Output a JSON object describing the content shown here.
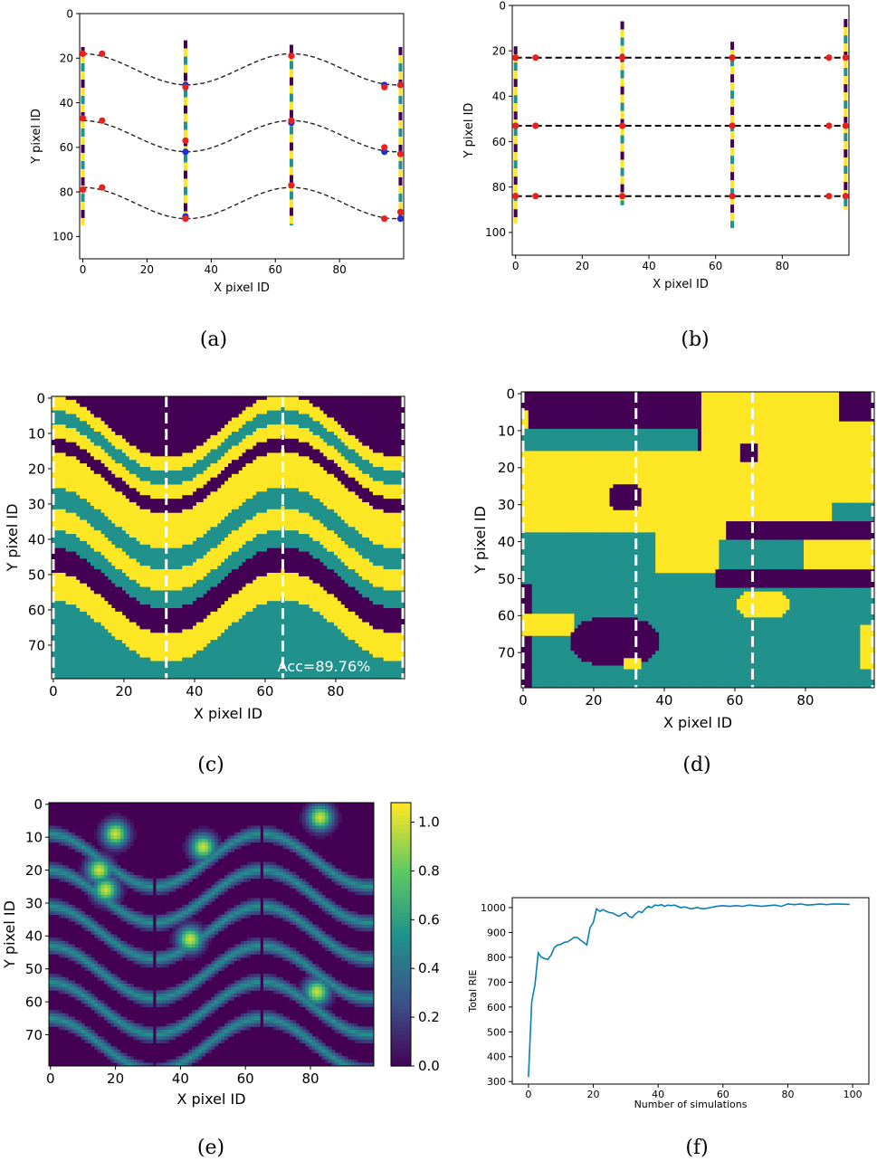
{
  "colors": {
    "purple": "#440154",
    "teal": "#21918c",
    "yellow": "#fde725",
    "red": "#e8211f",
    "blue": "#1f2fd6",
    "line": "#0a7fb5"
  },
  "captions": [
    "(a)",
    "(b)",
    "(c)",
    "(d)",
    "(e)",
    "(f)"
  ],
  "chart_data": [
    {
      "panel": "a",
      "type": "scatter",
      "xlabel": "X pixel ID",
      "ylabel": "Y pixel ID",
      "xlim": [
        -1,
        100
      ],
      "ylim": [
        110,
        0
      ],
      "xticks": [
        "0",
        "20",
        "40",
        "60",
        "80"
      ],
      "yticks": [
        "0",
        "20",
        "40",
        "60",
        "80",
        "100"
      ],
      "wells_x": [
        0,
        32,
        65,
        99
      ],
      "well_ranges": [
        [
          15,
          95
        ],
        [
          12,
          92
        ],
        [
          14,
          95
        ],
        [
          15,
          92
        ]
      ],
      "curves": [
        {
          "base": 25,
          "amp": -7
        },
        {
          "base": 55,
          "amp": -7
        },
        {
          "base": 85,
          "amp": -7
        }
      ],
      "red_points": [
        [
          0,
          18
        ],
        [
          6,
          18
        ],
        [
          32,
          33
        ],
        [
          32,
          57
        ],
        [
          65,
          19
        ],
        [
          94,
          33
        ],
        [
          99,
          32
        ],
        [
          0,
          47
        ],
        [
          6,
          48
        ],
        [
          65,
          48
        ],
        [
          94,
          60
        ],
        [
          99,
          63
        ],
        [
          0,
          79
        ],
        [
          6,
          78
        ],
        [
          32,
          92
        ],
        [
          65,
          77
        ],
        [
          94,
          92
        ],
        [
          99,
          89
        ]
      ],
      "blue_points": [
        [
          32,
          32
        ],
        [
          32,
          62
        ],
        [
          65,
          49
        ],
        [
          94,
          32
        ],
        [
          94,
          62
        ],
        [
          99,
          92
        ],
        [
          32,
          91
        ]
      ]
    },
    {
      "panel": "b",
      "type": "scatter",
      "xlabel": "X pixel ID",
      "ylabel": "Y pixel ID",
      "xlim": [
        -1,
        100
      ],
      "ylim": [
        110,
        0
      ],
      "xticks": [
        "0",
        "20",
        "40",
        "60",
        "80"
      ],
      "yticks": [
        "0",
        "20",
        "40",
        "60",
        "80",
        "100"
      ],
      "wells_x": [
        0,
        32,
        65,
        99
      ],
      "well_ranges": [
        [
          18,
          96
        ],
        [
          7,
          88
        ],
        [
          16,
          98
        ],
        [
          6,
          90
        ]
      ],
      "hlines_y": [
        23,
        53,
        84
      ],
      "red_points_x": [
        0,
        6,
        32,
        65,
        94,
        99
      ]
    },
    {
      "panel": "c",
      "type": "heatmap",
      "xlabel": "X pixel ID",
      "ylabel": "Y pixel ID",
      "xlim": [
        -0.5,
        99.5
      ],
      "ylim": [
        79.5,
        -0.5
      ],
      "xticks": [
        "0",
        "20",
        "40",
        "60",
        "80"
      ],
      "yticks": [
        "0",
        "10",
        "20",
        "30",
        "40",
        "50",
        "60",
        "70"
      ],
      "wells_x": [
        0,
        32,
        65,
        99
      ],
      "annotation": "Acc=89.76%",
      "layers": [
        {
          "until": 8,
          "cls": "purple"
        },
        {
          "until": 12,
          "cls": "yellow"
        },
        {
          "until": 16,
          "cls": "teal"
        },
        {
          "until": 20,
          "cls": "yellow"
        },
        {
          "until": 24,
          "cls": "purple"
        },
        {
          "until": 34,
          "cls": "yellow"
        },
        {
          "until": 40,
          "cls": "teal"
        },
        {
          "until": 46,
          "cls": "yellow"
        },
        {
          "until": 51,
          "cls": "teal"
        },
        {
          "until": 58,
          "cls": "purple"
        },
        {
          "until": 66,
          "cls": "yellow"
        },
        {
          "until": 80,
          "cls": "teal"
        }
      ]
    },
    {
      "panel": "d",
      "type": "heatmap",
      "xlabel": "X pixel ID",
      "ylabel": "Y pixel ID",
      "xlim": [
        -0.5,
        99.5
      ],
      "ylim": [
        79.5,
        -0.5
      ],
      "xticks": [
        "0",
        "20",
        "40",
        "60",
        "80"
      ],
      "yticks": [
        "0",
        "10",
        "20",
        "30",
        "40",
        "50",
        "60",
        "70"
      ],
      "wells_x": [
        0,
        32,
        65,
        99
      ]
    },
    {
      "panel": "e",
      "type": "heatmap",
      "xlabel": "X pixel ID",
      "ylabel": "Y pixel ID",
      "xlim": [
        -0.5,
        99.5
      ],
      "ylim": [
        79.5,
        -0.5
      ],
      "xticks": [
        "0",
        "20",
        "40",
        "60",
        "80"
      ],
      "yticks": [
        "0",
        "10",
        "20",
        "30",
        "40",
        "50",
        "60",
        "70"
      ],
      "colorbar_ticks": [
        "0.0",
        "0.2",
        "0.4",
        "0.6",
        "0.8",
        "1.0"
      ],
      "colorbar_range": [
        0,
        1.08
      ],
      "bands_y": [
        9,
        20,
        31,
        43,
        54,
        65
      ],
      "peaks": [
        [
          20,
          9
        ],
        [
          15,
          20
        ],
        [
          17,
          26
        ],
        [
          47,
          13
        ],
        [
          43,
          41
        ],
        [
          83,
          4
        ],
        [
          82,
          57
        ]
      ]
    },
    {
      "panel": "f",
      "type": "line",
      "xlabel": "Number of simulations",
      "ylabel": "Total RIE",
      "xlim": [
        -5,
        105
      ],
      "ylim": [
        290,
        1040
      ],
      "xticks": [
        "0",
        "20",
        "40",
        "60",
        "80",
        "100"
      ],
      "yticks": [
        "300",
        "400",
        "500",
        "600",
        "700",
        "800",
        "900",
        "1000"
      ],
      "x": [
        0,
        1,
        2,
        3,
        4,
        5,
        6,
        7,
        8,
        9,
        10,
        11,
        12,
        13,
        14,
        15,
        16,
        17,
        18,
        19,
        20,
        21,
        22,
        23,
        24,
        25,
        26,
        27,
        28,
        29,
        30,
        31,
        32,
        33,
        34,
        35,
        36,
        37,
        38,
        39,
        40,
        41,
        42,
        43,
        44,
        45,
        46,
        47,
        48,
        49,
        50,
        52,
        54,
        56,
        58,
        60,
        62,
        64,
        66,
        68,
        70,
        72,
        74,
        76,
        78,
        80,
        82,
        84,
        86,
        88,
        90,
        92,
        94,
        96,
        99
      ],
      "values": [
        320,
        620,
        690,
        818,
        800,
        795,
        792,
        810,
        840,
        850,
        852,
        860,
        862,
        870,
        880,
        880,
        870,
        860,
        850,
        920,
        940,
        995,
        985,
        992,
        985,
        980,
        978,
        970,
        965,
        975,
        980,
        965,
        960,
        975,
        985,
        980,
        995,
        1005,
        1000,
        1010,
        1008,
        1012,
        1005,
        1010,
        1008,
        1010,
        1005,
        1000,
        1003,
        1000,
        995,
        1000,
        995,
        1000,
        1005,
        1008,
        1005,
        1008,
        1005,
        1010,
        1008,
        1005,
        1008,
        1010,
        1005,
        1015,
        1012,
        1015,
        1010,
        1012,
        1015,
        1012,
        1015,
        1014,
        1013
      ]
    }
  ]
}
